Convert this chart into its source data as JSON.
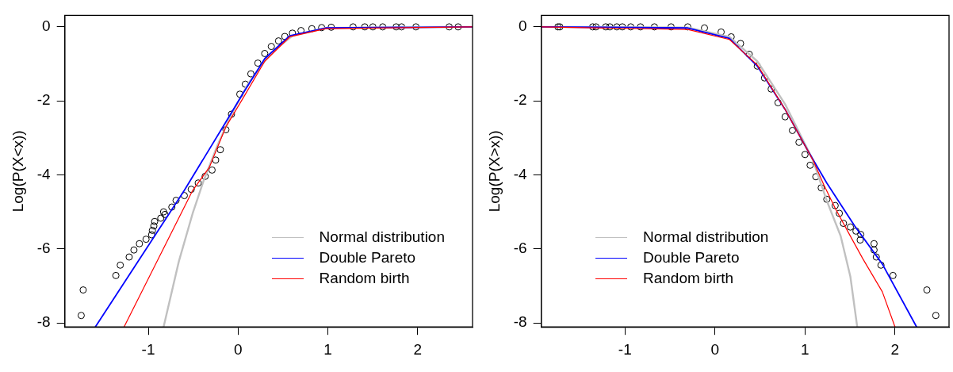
{
  "chart_data": [
    {
      "type": "line",
      "ylabel": "Log(P(X<x))",
      "xlim": [
        -1.93,
        2.61
      ],
      "ylim": [
        -8.11,
        0.31
      ],
      "xticks": [
        -1,
        0,
        1,
        2
      ],
      "yticks": [
        -8,
        -6,
        -4,
        -2,
        0
      ],
      "grid": false,
      "legend": "bottom right",
      "series": [
        {
          "type": "scatter",
          "marker": "circle",
          "color": "#000000",
          "x": [
            -1.747,
            -1.725,
            -1.361,
            -1.312,
            -1.213,
            -1.16,
            -1.099,
            -1.025,
            -0.963,
            -0.954,
            -0.938,
            -0.929,
            -0.861,
            -0.83,
            -0.815,
            -0.738,
            -0.691,
            -0.599,
            -0.522,
            -0.444,
            -0.367,
            -0.29,
            -0.25,
            -0.198,
            -0.136,
            -0.074,
            0.019,
            0.08,
            0.142,
            0.22,
            0.296,
            0.37,
            0.45,
            0.52,
            0.605,
            0.7,
            0.821,
            0.93,
            1.037,
            1.28,
            1.41,
            1.5,
            1.61,
            1.76,
            1.82,
            1.98,
            2.35,
            2.45
          ],
          "values": [
            -7.8,
            -7.11,
            -6.72,
            -6.44,
            -6.22,
            -6.03,
            -5.86,
            -5.74,
            -5.62,
            -5.5,
            -5.38,
            -5.26,
            -5.17,
            -5.0,
            -5.07,
            -4.87,
            -4.69,
            -4.56,
            -4.39,
            -4.22,
            -4.04,
            -3.87,
            -3.6,
            -3.32,
            -2.78,
            -2.36,
            -1.82,
            -1.55,
            -1.27,
            -0.98,
            -0.72,
            -0.53,
            -0.38,
            -0.26,
            -0.17,
            -0.1,
            -0.05,
            -0.02,
            -0.01,
            0,
            0,
            0,
            0,
            0,
            0,
            0,
            0,
            0
          ]
        },
        {
          "name": "Normal distribution",
          "marker": "none",
          "color": "#c0c0c0",
          "x": [
            -0.83,
            -0.66,
            -0.506,
            -0.383,
            -0.228,
            -0.074,
            0.111,
            0.358,
            0.605,
            0.975,
            2.61
          ],
          "values": [
            -8.11,
            -6.34,
            -5.04,
            -4.15,
            -3.19,
            -2.36,
            -1.54,
            -0.72,
            -0.24,
            -0.03,
            0
          ]
        },
        {
          "name": "Double Pareto",
          "marker": "none",
          "color": "#0000ff",
          "x": [
            -1.59,
            -0.599,
            -0.136,
            0.049,
            0.296,
            0.574,
            0.975,
            2.61
          ],
          "values": [
            -8.11,
            -4.42,
            -2.57,
            -1.82,
            -0.86,
            -0.24,
            -0.03,
            0
          ]
        },
        {
          "name": "Random birth",
          "marker": "none",
          "color": "#ff0000",
          "x": [
            -1.27,
            -0.506,
            -0.321,
            -0.136,
            0.049,
            0.296,
            0.574,
            0.975,
            2.61
          ],
          "values": [
            -8.11,
            -4.42,
            -3.8,
            -2.7,
            -1.95,
            -0.93,
            -0.27,
            -0.05,
            0
          ]
        }
      ]
    },
    {
      "type": "line",
      "ylabel": "Log(P(X>x))",
      "xlim": [
        -1.93,
        2.6
      ],
      "ylim": [
        -8.11,
        0.31
      ],
      "xticks": [
        -1,
        0,
        1,
        2
      ],
      "yticks": [
        -8,
        -6,
        -4,
        -2,
        0
      ],
      "grid": false,
      "legend": "bottom left",
      "series": [
        {
          "type": "scatter",
          "marker": "circle",
          "color": "#000000",
          "x": [
            -1.745,
            -1.724,
            -1.359,
            -1.322,
            -1.214,
            -1.168,
            -1.091,
            -1.029,
            -0.936,
            -0.828,
            -0.673,
            -0.488,
            -0.303,
            -0.117,
            0.068,
            0.18,
            0.284,
            0.38,
            0.47,
            0.55,
            0.624,
            0.7,
            0.779,
            0.86,
            0.933,
            1.0,
            1.057,
            1.12,
            1.18,
            1.242,
            1.335,
            1.381,
            1.427,
            1.504,
            1.566,
            1.619,
            1.613,
            1.767,
            1.767,
            1.792,
            1.844,
            1.977,
            2.354,
            2.453
          ],
          "values": [
            0,
            0,
            0,
            0,
            0,
            0,
            0,
            0,
            0,
            0,
            0,
            0,
            0,
            -0.03,
            -0.14,
            -0.27,
            -0.45,
            -0.74,
            -1.06,
            -1.38,
            -1.68,
            -2.05,
            -2.43,
            -2.8,
            -3.12,
            -3.45,
            -3.74,
            -4.05,
            -4.35,
            -4.66,
            -4.83,
            -5.04,
            -5.31,
            -5.41,
            -5.52,
            -5.61,
            -5.76,
            -5.86,
            -6.03,
            -6.22,
            -6.44,
            -6.72,
            -7.11,
            -7.8
          ]
        },
        {
          "name": "Normal distribution",
          "marker": "none",
          "color": "#c0c0c0",
          "x": [
            -1.93,
            -0.303,
            0.16,
            0.47,
            0.779,
            1.088,
            1.242,
            1.396,
            1.504,
            1.58
          ],
          "values": [
            0,
            -0.02,
            -0.27,
            -0.93,
            -2.09,
            -3.6,
            -4.7,
            -5.65,
            -6.75,
            -8.11
          ]
        },
        {
          "name": "Double Pareto",
          "marker": "none",
          "color": "#0000ff",
          "x": [
            -1.93,
            -0.303,
            0.16,
            0.47,
            0.779,
            1.025,
            1.242,
            1.551,
            1.859,
            2.24
          ],
          "values": [
            0,
            -0.03,
            -0.31,
            -1.06,
            -2.23,
            -3.32,
            -4.22,
            -5.38,
            -6.41,
            -8.11
          ]
        },
        {
          "name": "Random birth",
          "marker": "none",
          "color": "#ff0000",
          "x": [
            -1.93,
            -0.303,
            0.16,
            0.47,
            0.779,
            1.088,
            1.211,
            1.335,
            1.489,
            1.643,
            1.859,
            2.0
          ],
          "values": [
            0,
            -0.07,
            -0.34,
            -1.03,
            -2.23,
            -3.6,
            -4.28,
            -4.9,
            -5.59,
            -6.27,
            -7.16,
            -8.11
          ]
        }
      ]
    }
  ]
}
